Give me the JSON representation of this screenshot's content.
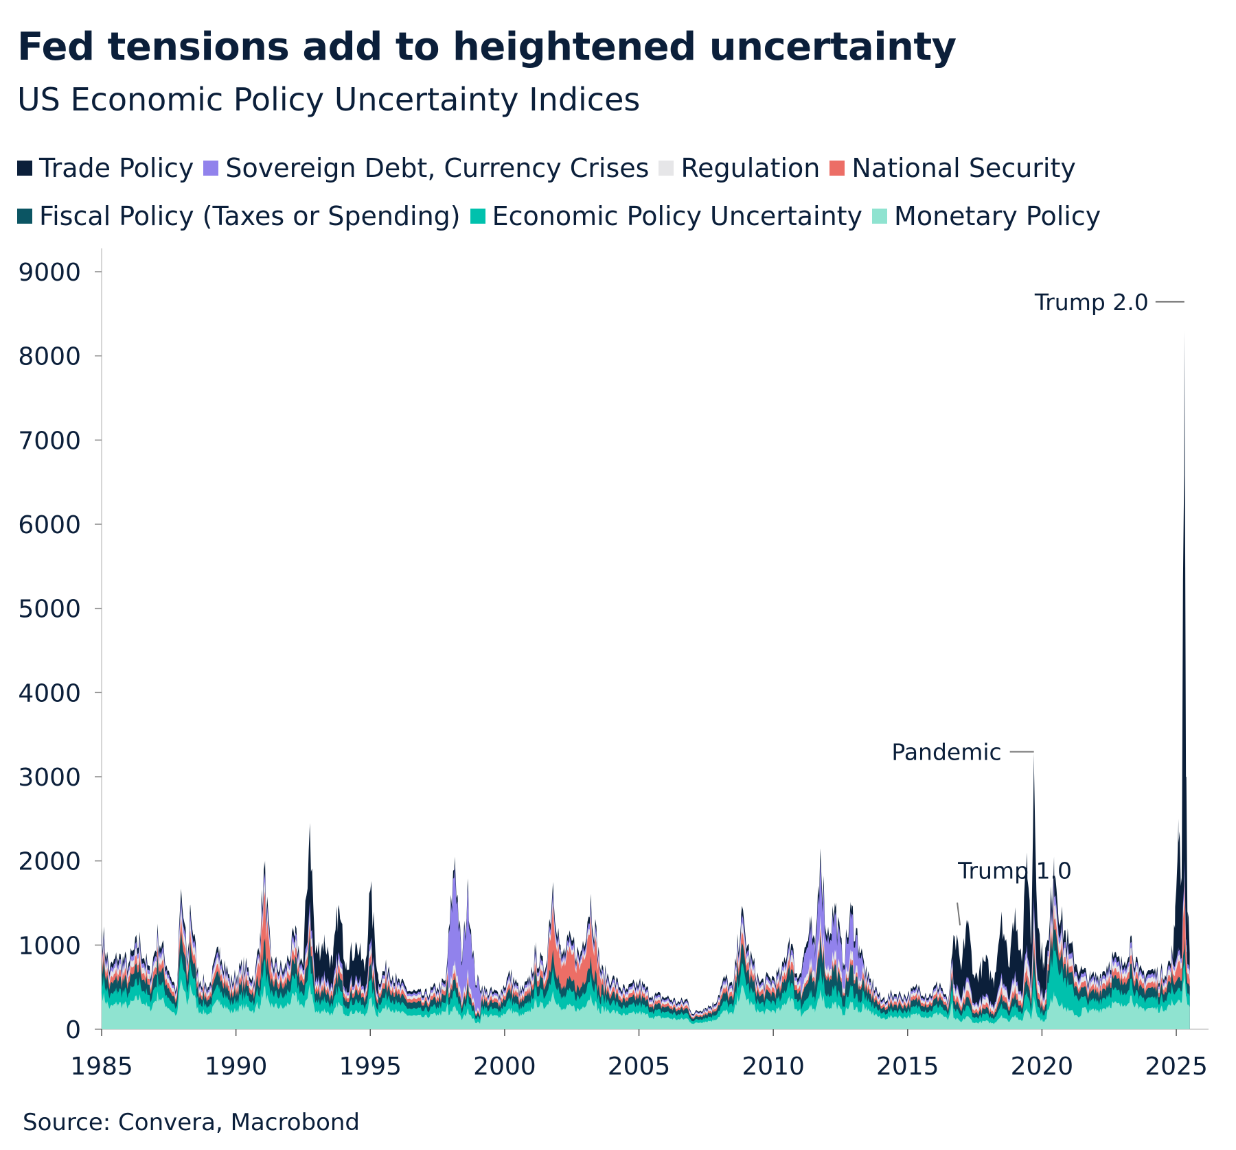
{
  "chart_data": {
    "type": "area",
    "stacked": true,
    "title": "Fed tensions add to heightened uncertainty",
    "subtitle": "US Economic Policy Uncertainty Indices",
    "source": "Source: Convera, Macrobond",
    "xlim": [
      1985,
      2026.2
    ],
    "ylim": [
      0,
      9250
    ],
    "x_ticks": [
      1985,
      1990,
      1995,
      2000,
      2005,
      2010,
      2015,
      2020,
      2025
    ],
    "y_ticks": [
      0,
      1000,
      2000,
      3000,
      4000,
      5000,
      6000,
      7000,
      8000,
      9000
    ],
    "legend_placement": "top",
    "series": [
      {
        "name": "Monetary Policy",
        "color": "#8fe3d0"
      },
      {
        "name": "Economic Policy Uncertainty",
        "color": "#00c1ad"
      },
      {
        "name": "Fiscal Policy (Taxes or Spending)",
        "color": "#0b5563"
      },
      {
        "name": "National Security",
        "color": "#ec6e66"
      },
      {
        "name": "Regulation",
        "color": "#e6e6e8"
      },
      {
        "name": "Sovereign Debt, Currency Crises",
        "color": "#9182ec"
      },
      {
        "name": "Trade Policy",
        "color": "#0b1f3a"
      }
    ],
    "total_profile": [
      [
        1985.0,
        1200
      ],
      [
        1985.3,
        700
      ],
      [
        1985.6,
        850
      ],
      [
        1986.0,
        780
      ],
      [
        1986.4,
        1050
      ],
      [
        1986.8,
        650
      ],
      [
        1987.1,
        1120
      ],
      [
        1987.5,
        700
      ],
      [
        1987.8,
        450
      ],
      [
        1987.95,
        1620
      ],
      [
        1988.2,
        800
      ],
      [
        1988.3,
        1480
      ],
      [
        1988.6,
        620
      ],
      [
        1989.0,
        500
      ],
      [
        1989.4,
        980
      ],
      [
        1989.8,
        560
      ],
      [
        1990.3,
        760
      ],
      [
        1990.7,
        600
      ],
      [
        1990.9,
        1150
      ],
      [
        1991.05,
        1900
      ],
      [
        1991.3,
        800
      ],
      [
        1991.8,
        700
      ],
      [
        1992.2,
        1100
      ],
      [
        1992.5,
        750
      ],
      [
        1992.75,
        2450
      ],
      [
        1992.95,
        900
      ],
      [
        1993.3,
        1050
      ],
      [
        1993.6,
        750
      ],
      [
        1993.8,
        1420
      ],
      [
        1994.1,
        800
      ],
      [
        1994.5,
        1000
      ],
      [
        1994.8,
        700
      ],
      [
        1995.0,
        1650
      ],
      [
        1995.3,
        600
      ],
      [
        1995.7,
        750
      ],
      [
        1996.0,
        560
      ],
      [
        1996.5,
        450
      ],
      [
        1997.0,
        400
      ],
      [
        1997.5,
        500
      ],
      [
        1997.8,
        550
      ],
      [
        1998.15,
        2050
      ],
      [
        1998.4,
        800
      ],
      [
        1998.65,
        1640
      ],
      [
        1998.9,
        600
      ],
      [
        1999.3,
        450
      ],
      [
        1999.8,
        420
      ],
      [
        2000.2,
        650
      ],
      [
        2000.6,
        450
      ],
      [
        2000.9,
        550
      ],
      [
        2001.15,
        900
      ],
      [
        2001.5,
        700
      ],
      [
        2001.8,
        1750
      ],
      [
        2002.1,
        850
      ],
      [
        2002.5,
        1050
      ],
      [
        2002.8,
        850
      ],
      [
        2003.2,
        1550
      ],
      [
        2003.6,
        680
      ],
      [
        2004.0,
        600
      ],
      [
        2004.5,
        450
      ],
      [
        2005.0,
        550
      ],
      [
        2005.5,
        400
      ],
      [
        2006.0,
        380
      ],
      [
        2006.5,
        320
      ],
      [
        2006.8,
        350
      ],
      [
        2007.0,
        180
      ],
      [
        2007.4,
        250
      ],
      [
        2007.8,
        300
      ],
      [
        2008.2,
        600
      ],
      [
        2008.5,
        480
      ],
      [
        2008.8,
        1350
      ],
      [
        2009.1,
        900
      ],
      [
        2009.5,
        550
      ],
      [
        2009.9,
        600
      ],
      [
        2010.3,
        650
      ],
      [
        2010.6,
        1100
      ],
      [
        2010.9,
        600
      ],
      [
        2011.1,
        850
      ],
      [
        2011.4,
        1200
      ],
      [
        2011.55,
        900
      ],
      [
        2011.75,
        2150
      ],
      [
        2012.0,
        1100
      ],
      [
        2012.3,
        1450
      ],
      [
        2012.6,
        800
      ],
      [
        2012.9,
        1400
      ],
      [
        2013.2,
        1000
      ],
      [
        2013.5,
        600
      ],
      [
        2013.8,
        500
      ],
      [
        2014.0,
        350
      ],
      [
        2014.5,
        420
      ],
      [
        2015.0,
        400
      ],
      [
        2015.4,
        500
      ],
      [
        2015.8,
        400
      ],
      [
        2016.2,
        550
      ],
      [
        2016.5,
        300
      ],
      [
        2016.75,
        1100
      ],
      [
        2017.0,
        700
      ],
      [
        2017.2,
        1300
      ],
      [
        2017.5,
        600
      ],
      [
        2017.9,
        800
      ],
      [
        2018.2,
        550
      ],
      [
        2018.5,
        1400
      ],
      [
        2018.75,
        750
      ],
      [
        2019.0,
        1450
      ],
      [
        2019.25,
        800
      ],
      [
        2019.45,
        2100
      ],
      [
        2019.6,
        1000
      ],
      [
        2019.7,
        3280
      ],
      [
        2019.85,
        1200
      ],
      [
        2020.05,
        800
      ],
      [
        2020.25,
        1050
      ],
      [
        2020.45,
        2050
      ],
      [
        2020.7,
        1300
      ],
      [
        2021.0,
        1000
      ],
      [
        2021.4,
        700
      ],
      [
        2021.8,
        600
      ],
      [
        2022.2,
        650
      ],
      [
        2022.6,
        850
      ],
      [
        2023.0,
        750
      ],
      [
        2023.3,
        1100
      ],
      [
        2023.6,
        650
      ],
      [
        2024.0,
        700
      ],
      [
        2024.4,
        650
      ],
      [
        2024.8,
        800
      ],
      [
        2024.95,
        1200
      ],
      [
        2025.08,
        2500
      ],
      [
        2025.2,
        1800
      ],
      [
        2025.3,
        8300
      ],
      [
        2025.36,
        3000
      ],
      [
        2025.42,
        1400
      ],
      [
        2025.5,
        900
      ]
    ],
    "annotations": [
      {
        "label": "Trump 2.0",
        "x": 2025.3,
        "y": 8300
      },
      {
        "label": "Pandemic",
        "x": 2019.7,
        "y": 3280
      },
      {
        "label": "Trump 1.0",
        "x": 2016.95,
        "y": 1300
      }
    ]
  }
}
